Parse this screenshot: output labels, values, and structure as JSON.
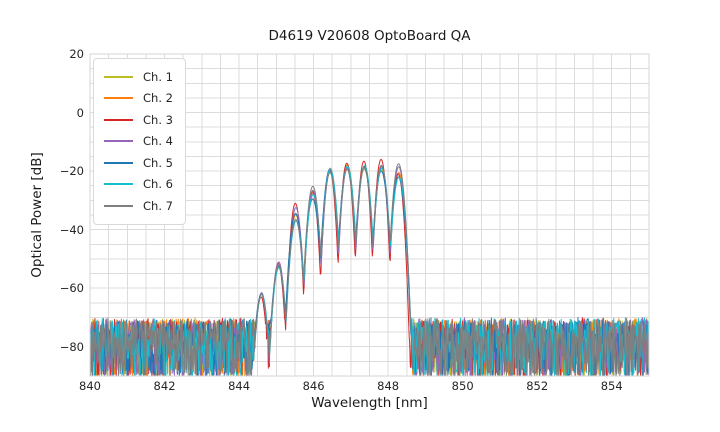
{
  "chart_data": {
    "type": "line",
    "title": "D4619 V20608 OptoBoard QA",
    "xlabel": "Wavelength [nm]",
    "ylabel": "Optical Power [dB]",
    "xlim": [
      840,
      855
    ],
    "ylim": [
      -90,
      20
    ],
    "xticks": [
      840,
      842,
      844,
      846,
      848,
      850,
      852,
      854
    ],
    "xtick_labels": [
      "840",
      "842",
      "844",
      "846",
      "848",
      "850",
      "852",
      "854"
    ],
    "yticks": [
      20,
      0,
      -20,
      -40,
      -60,
      -80
    ],
    "ytick_labels": [
      "20",
      "0",
      "−20",
      "−40",
      "−60",
      "−80"
    ],
    "grid": {
      "x_step_nm": 0.5,
      "y_step_db": 5,
      "color": "#dcdcdc",
      "border_color": "#d4d4d4"
    },
    "legend": {
      "location": "upper left"
    },
    "noise_floor_db": {
      "top": -70,
      "typical_low": -85,
      "min": -90
    },
    "signal_band_nm": [
      844.4,
      848.6
    ],
    "mode_centers_nm": [
      844.6,
      845.06,
      845.52,
      845.98,
      846.44,
      846.9,
      847.36,
      847.82,
      848.28
    ],
    "series": [
      {
        "name": "Ch. 1",
        "color": "#bcbd22",
        "seed": 101,
        "center_offset_nm": 0.0,
        "valley_sharpness": 500,
        "mode_peaks_db": [
          -62.0,
          -53.0,
          -35.0,
          -26.5,
          -20.3,
          -19.3,
          -19.3,
          -19.5,
          -20.5
        ]
      },
      {
        "name": "Ch. 2",
        "color": "#ff7f0e",
        "seed": 202,
        "center_offset_nm": 0.006,
        "valley_sharpness": 510,
        "mode_peaks_db": [
          -62.0,
          -52.0,
          -34.5,
          -27.5,
          -19.0,
          -17.8,
          -18.3,
          -19.0,
          -20.5
        ]
      },
      {
        "name": "Ch. 3",
        "color": "#d62728",
        "seed": 303,
        "center_offset_nm": -0.01,
        "valley_sharpness": 640,
        "mode_peaks_db": [
          -63.0,
          -51.5,
          -31.0,
          -27.0,
          -19.5,
          -17.3,
          -16.6,
          -16.0,
          -21.0
        ]
      },
      {
        "name": "Ch. 4",
        "color": "#9467bd",
        "seed": 404,
        "center_offset_nm": 0.004,
        "valley_sharpness": 560,
        "mode_peaks_db": [
          -61.5,
          -51.0,
          -32.5,
          -26.7,
          -19.8,
          -18.8,
          -18.3,
          -18.5,
          -18.5
        ]
      },
      {
        "name": "Ch. 5",
        "color": "#1f77b4",
        "seed": 505,
        "center_offset_nm": -0.005,
        "valley_sharpness": 480,
        "mode_peaks_db": [
          -62.0,
          -52.5,
          -34.5,
          -29.5,
          -19.3,
          -19.3,
          -18.8,
          -20.0,
          -22.0
        ]
      },
      {
        "name": "Ch. 6",
        "color": "#17becf",
        "seed": 606,
        "center_offset_nm": 0.009,
        "valley_sharpness": 490,
        "mode_peaks_db": [
          -62.0,
          -53.0,
          -37.0,
          -28.0,
          -19.3,
          -18.3,
          -18.1,
          -19.0,
          -22.0
        ]
      },
      {
        "name": "Ch. 7",
        "color": "#7f7f7f",
        "seed": 707,
        "center_offset_nm": 0.0,
        "valley_sharpness": 520,
        "mode_peaks_db": [
          -62.0,
          -52.0,
          -36.5,
          -25.2,
          -20.5,
          -19.3,
          -18.5,
          -18.0,
          -17.5
        ]
      }
    ]
  }
}
